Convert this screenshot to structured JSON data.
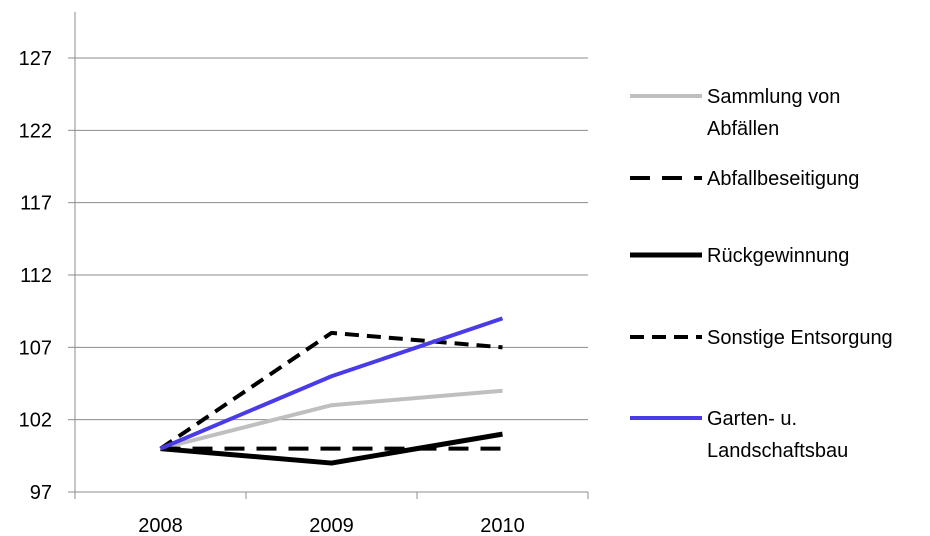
{
  "chart_data": {
    "type": "line",
    "title": "",
    "xlabel": "",
    "ylabel": "",
    "categories": [
      "2008",
      "2009",
      "2010"
    ],
    "ylim": [
      97,
      127
    ],
    "yticks": [
      97,
      102,
      107,
      112,
      117,
      122,
      127
    ],
    "grid": "horizontal",
    "legend_position": "right",
    "series": [
      {
        "name": "Sammlung von Abfällen",
        "legend_lines": [
          "Sammlung von",
          "Abfällen"
        ],
        "values": [
          100,
          103,
          104
        ],
        "color": "#bfbfbf",
        "dash": "solid"
      },
      {
        "name": "Abfallbeseitigung",
        "legend_lines": [
          "Abfallbeseitigung"
        ],
        "values": [
          100,
          100,
          100
        ],
        "color": "#000000",
        "dash": "long-dash"
      },
      {
        "name": "Rückgewinnung",
        "legend_lines": [
          "Rückgewinnung"
        ],
        "values": [
          100,
          99,
          101
        ],
        "color": "#000000",
        "dash": "solid-thick"
      },
      {
        "name": "Sonstige Entsorgung",
        "legend_lines": [
          "Sonstige Entsorgung"
        ],
        "values": [
          100,
          108,
          107
        ],
        "color": "#000000",
        "dash": "dash"
      },
      {
        "name": "Garten- u. Landschaftsbau",
        "legend_lines": [
          "Garten- u.",
          "Landschaftsbau"
        ],
        "values": [
          100,
          105,
          109
        ],
        "color": "#4a3be8",
        "dash": "solid"
      }
    ]
  }
}
